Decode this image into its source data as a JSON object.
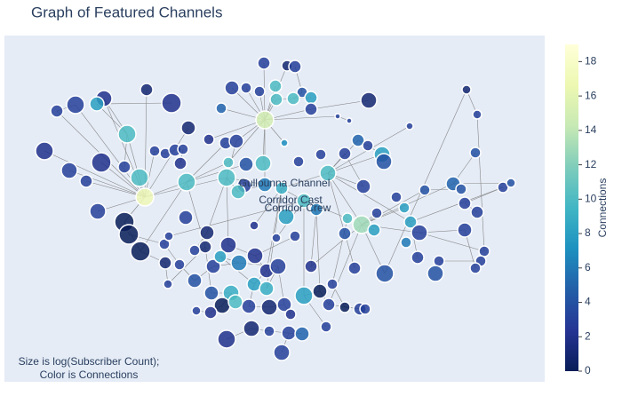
{
  "chart_data": {
    "type": "network",
    "title": "Graph of Featured Channels",
    "annotation": [
      "Size is log(Subscriber Count);",
      "Color is Connections"
    ],
    "colorbar_title": "Connections",
    "clim": [
      0,
      19
    ],
    "cticks": [
      0,
      2,
      4,
      6,
      8,
      10,
      12,
      14,
      16,
      18
    ],
    "colorscale": [
      "#081d58",
      "#253494",
      "#225ea8",
      "#1d91c0",
      "#41b6c4",
      "#7fcdbb",
      "#c7e9b4",
      "#edf8b1",
      "#ffffd9"
    ],
    "labels": [
      {
        "text": "Gullounna Channel",
        "x": 315,
        "y": 223
      },
      {
        "text": "Corridor Cast",
        "x": 322,
        "y": 204
      },
      {
        "text": "Corridor Crew",
        "x": 330,
        "y": 195
      }
    ],
    "nodes": {
      "x": [
        292,
        318,
        327,
        256,
        272,
        287,
        305,
        335,
        306,
        325,
        345,
        293,
        375,
        388,
        410,
        456,
        520,
        532,
        160,
        112,
        104,
        80,
        59,
        345,
        188,
        138,
        207,
        244,
        230,
        249,
        261,
        315,
        45,
        109,
        135,
        73,
        92,
        152,
        158,
        105,
        169,
        181,
        192,
        201,
        198,
        205,
        204,
        252,
        272,
        291,
        250,
        270,
        293,
        312,
        331,
        356,
        364,
        383,
        398,
        409,
        425,
        427,
        404,
        441,
        473,
        505,
        514,
        530,
        561,
        570,
        518,
        532,
        317,
        337,
        351,
        386,
        402,
        416,
        383,
        419,
        450,
        457,
        467,
        452,
        465,
        489,
        518,
        540,
        536,
        530,
        485,
        428,
        394,
        345,
        135,
        140,
        153,
        180,
        181,
        197,
        184,
        214,
        226,
        235,
        233,
        252,
        264,
        282,
        295,
        308,
        281,
        255,
        245,
        232,
        216,
        275,
        298,
        315,
        337,
        355,
        369,
        365,
        383,
        400,
        406,
        322,
        278,
        298,
        320,
        335,
        362,
        250,
        312,
        281,
        228,
        306,
        327,
        185,
        214,
        243,
        260,
        295,
        263
      ],
      "y": [
        359,
        356,
        355,
        331,
        331,
        327,
        333,
        326,
        318,
        319,
        320,
        295,
        299,
        294,
        317,
        288,
        329,
        301,
        329,
        319,
        313,
        312,
        305,
        307,
        314,
        279,
        286,
        308,
        273,
        269,
        271,
        269,
        260,
        247,
        242,
        238,
        226,
        230,
        208,
        192,
        260,
        257,
        261,
        262,
        246,
        225,
        185,
        247,
        245,
        246,
        230,
        221,
        222,
        218,
        248,
        256,
        235,
        257,
        272,
        266,
        256,
        248,
        220,
        208,
        216,
        223,
        217,
        258,
        219,
        224,
        201,
        191,
        186,
        204,
        194,
        184,
        177,
        171,
        167,
        190,
        196,
        180,
        168,
        157,
        140,
        136,
        171,
        147,
        136,
        128,
        122,
        122,
        128,
        130,
        180,
        166,
        147,
        155,
        134,
        132,
        110,
        114,
        152,
        130,
        100,
        154,
        134,
        142,
        125,
        130,
        110,
        100,
        86,
        78,
        80,
        85,
        84,
        87,
        97,
        102,
        110,
        87,
        84,
        82,
        82,
        76,
        60,
        57,
        55,
        54,
        62,
        48,
        33,
        176,
        168,
        162,
        164,
        164,
        148,
        141,
        90,
        105,
        214
      ],
      "size": [
        14,
        12,
        14,
        16,
        12,
        12,
        14,
        12,
        14,
        14,
        14,
        20,
        6,
        6,
        18,
        8,
        10,
        10,
        14,
        18,
        16,
        20,
        14,
        14,
        22,
        20,
        16,
        12,
        12,
        14,
        16,
        8,
        20,
        22,
        14,
        18,
        14,
        20,
        20,
        18,
        12,
        12,
        14,
        12,
        14,
        20,
        16,
        12,
        16,
        18,
        20,
        16,
        16,
        14,
        12,
        12,
        18,
        14,
        14,
        12,
        18,
        18,
        16,
        12,
        12,
        16,
        12,
        12,
        12,
        10,
        14,
        14,
        18,
        16,
        14,
        12,
        20,
        14,
        14,
        12,
        12,
        14,
        18,
        12,
        14,
        12,
        16,
        12,
        12,
        12,
        18,
        20,
        14,
        14,
        22,
        22,
        22,
        12,
        14,
        12,
        10,
        16,
        14,
        16,
        16,
        18,
        18,
        18,
        16,
        18,
        16,
        18,
        18,
        14,
        10,
        16,
        18,
        16,
        20,
        16,
        12,
        14,
        12,
        14,
        12,
        12,
        18,
        12,
        16,
        16,
        12,
        20,
        18,
        10,
        16,
        10,
        12,
        10,
        12,
        14,
        16,
        16,
        16
      ],
      "connections": [
        3,
        1,
        3,
        3,
        3,
        3,
        10,
        4,
        10,
        10,
        8,
        15,
        3,
        3,
        1,
        3,
        1,
        3,
        1,
        2,
        8,
        3,
        3,
        3,
        2,
        10,
        1,
        5,
        2,
        3,
        3,
        7,
        2,
        2,
        3,
        3,
        3,
        10,
        17,
        3,
        3,
        3,
        3,
        3,
        2,
        10,
        3,
        10,
        4,
        10,
        10,
        3,
        6,
        9,
        3,
        3,
        10,
        3,
        5,
        3,
        8,
        4,
        3,
        3,
        4,
        5,
        4,
        4,
        3,
        4,
        3,
        3,
        8,
        10,
        6,
        10,
        13,
        8,
        4,
        3,
        8,
        8,
        3,
        6,
        3,
        3,
        3,
        3,
        3,
        3,
        4,
        4,
        3,
        2,
        0,
        0,
        0,
        3,
        1,
        3,
        3,
        4,
        1,
        3,
        4,
        2,
        6,
        2,
        2,
        3,
        8,
        9,
        0,
        2,
        3,
        3,
        1,
        3,
        8,
        0,
        3,
        3,
        0,
        3,
        3,
        2,
        1,
        3,
        3,
        5,
        3,
        2,
        3,
        2,
        1,
        3,
        3,
        3,
        3,
        8,
        10,
        9,
        10
      ]
    },
    "edges": [
      [
        11,
        0
      ],
      [
        11,
        1
      ],
      [
        11,
        3
      ],
      [
        11,
        4
      ],
      [
        11,
        5
      ],
      [
        11,
        6
      ],
      [
        11,
        8
      ],
      [
        11,
        27
      ],
      [
        11,
        30
      ],
      [
        11,
        31
      ],
      [
        11,
        47
      ],
      [
        11,
        49
      ],
      [
        11,
        52
      ],
      [
        11,
        12
      ],
      [
        11,
        23
      ],
      [
        11,
        28
      ],
      [
        38,
        18
      ],
      [
        38,
        19
      ],
      [
        38,
        21
      ],
      [
        38,
        22
      ],
      [
        38,
        25
      ],
      [
        38,
        32
      ],
      [
        38,
        33
      ],
      [
        38,
        35
      ],
      [
        38,
        36
      ],
      [
        38,
        39
      ],
      [
        38,
        40
      ],
      [
        38,
        45
      ],
      [
        38,
        94
      ],
      [
        38,
        50
      ],
      [
        38,
        26
      ],
      [
        25,
        19
      ],
      [
        25,
        20
      ],
      [
        25,
        34
      ],
      [
        20,
        24
      ],
      [
        21,
        22
      ],
      [
        45,
        29
      ],
      [
        45,
        47
      ],
      [
        45,
        48
      ],
      [
        45,
        102
      ],
      [
        45,
        96
      ],
      [
        50,
        30
      ],
      [
        50,
        52
      ],
      [
        50,
        134
      ],
      [
        50,
        105
      ],
      [
        50,
        142
      ],
      [
        53,
        73
      ],
      [
        53,
        56
      ],
      [
        53,
        133
      ],
      [
        53,
        108
      ],
      [
        53,
        141
      ],
      [
        56,
        57
      ],
      [
        56,
        58
      ],
      [
        56,
        60
      ],
      [
        56,
        76
      ],
      [
        56,
        62
      ],
      [
        56,
        81
      ],
      [
        56,
        92
      ],
      [
        56,
        15
      ],
      [
        76,
        77
      ],
      [
        76,
        79
      ],
      [
        76,
        82
      ],
      [
        76,
        80
      ],
      [
        76,
        91
      ],
      [
        76,
        93
      ],
      [
        76,
        64
      ],
      [
        76,
        65
      ],
      [
        76,
        121
      ],
      [
        64,
        66
      ],
      [
        65,
        67
      ],
      [
        65,
        69
      ],
      [
        70,
        71
      ],
      [
        68,
        81
      ],
      [
        68,
        70
      ],
      [
        82,
        86
      ],
      [
        82,
        87
      ],
      [
        85,
        88
      ],
      [
        86,
        89
      ],
      [
        81,
        84
      ],
      [
        73,
        74
      ],
      [
        73,
        75
      ],
      [
        73,
        135
      ],
      [
        73,
        118
      ],
      [
        73,
        137
      ],
      [
        74,
        93
      ],
      [
        74,
        119
      ],
      [
        75,
        120
      ],
      [
        94,
        95
      ],
      [
        94,
        96
      ],
      [
        95,
        97
      ],
      [
        96,
        98
      ],
      [
        97,
        99
      ],
      [
        98,
        100
      ],
      [
        99,
        101
      ],
      [
        100,
        102
      ],
      [
        101,
        103
      ],
      [
        102,
        104
      ],
      [
        103,
        106
      ],
      [
        104,
        111
      ],
      [
        105,
        107
      ],
      [
        106,
        109
      ],
      [
        107,
        108
      ],
      [
        108,
        110
      ],
      [
        109,
        117
      ],
      [
        110,
        115
      ],
      [
        111,
        112
      ],
      [
        112,
        113
      ],
      [
        113,
        114
      ],
      [
        115,
        116
      ],
      [
        116,
        117
      ],
      [
        117,
        125
      ],
      [
        118,
        119
      ],
      [
        119,
        121
      ],
      [
        120,
        122
      ],
      [
        121,
        123
      ],
      [
        122,
        124
      ],
      [
        126,
        127
      ],
      [
        127,
        128
      ],
      [
        128,
        129
      ],
      [
        130,
        118
      ],
      [
        131,
        126
      ],
      [
        132,
        128
      ],
      [
        139,
        106
      ],
      [
        139,
        110
      ],
      [
        140,
        111
      ],
      [
        141,
        109
      ],
      [
        142,
        52
      ],
      [
        142,
        50
      ],
      [
        134,
        138
      ],
      [
        137,
        97
      ],
      [
        136,
        107
      ],
      [
        7,
        9
      ],
      [
        8,
        10
      ],
      [
        2,
        7
      ],
      [
        12,
        13
      ],
      [
        14,
        23
      ],
      [
        16,
        17
      ],
      [
        17,
        87
      ],
      [
        16,
        91
      ],
      [
        41,
        42
      ],
      [
        43,
        44
      ],
      [
        40,
        41
      ],
      [
        57,
        62
      ],
      [
        58,
        59
      ],
      [
        59,
        60
      ]
    ]
  }
}
